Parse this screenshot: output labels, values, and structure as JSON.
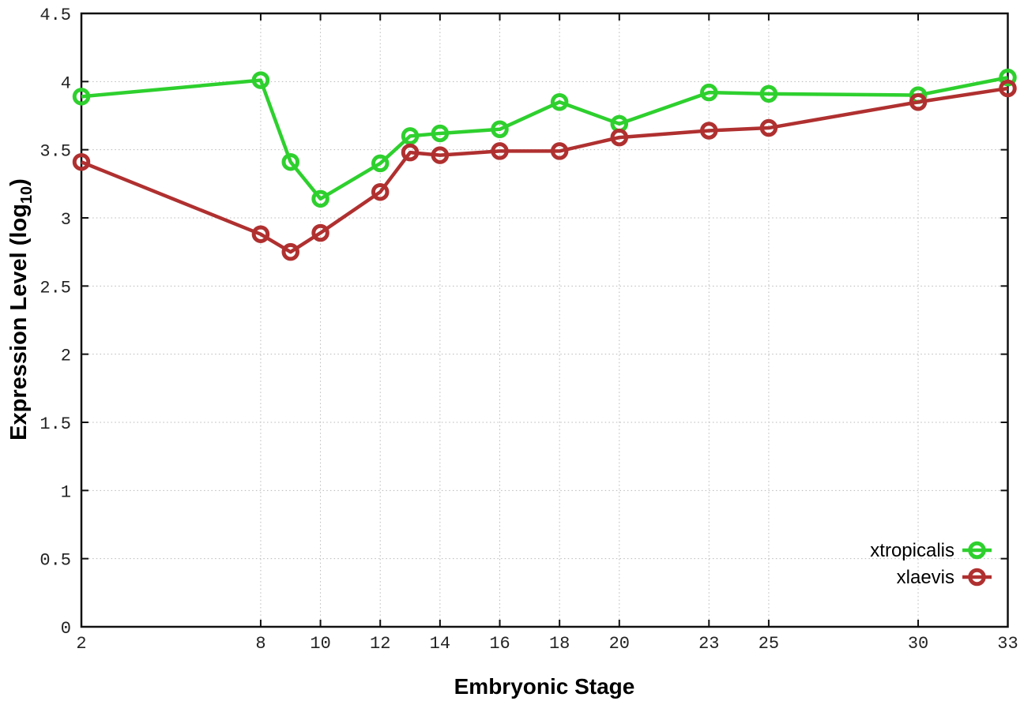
{
  "chart_data": {
    "type": "line",
    "title": "",
    "xlabel": "Embryonic Stage",
    "ylabel": {
      "prefix": "Expression Level (log",
      "sub": "10",
      "suffix": ")"
    },
    "xlim": [
      2,
      33
    ],
    "ylim": [
      0,
      4.5
    ],
    "x_ticks": [
      2,
      8,
      10,
      12,
      14,
      16,
      18,
      20,
      23,
      25,
      30,
      33
    ],
    "y_ticks": [
      0,
      0.5,
      1,
      1.5,
      2,
      2.5,
      3,
      3.5,
      4,
      4.5
    ],
    "grid": true,
    "legend_position": "bottom-right",
    "x": [
      2,
      8,
      9,
      10,
      12,
      13,
      14,
      16,
      18,
      20,
      23,
      25,
      30,
      33
    ],
    "series": [
      {
        "name": "xtropicalis",
        "color": "#2ed02e",
        "values": [
          3.89,
          4.01,
          3.41,
          3.14,
          3.4,
          3.6,
          3.62,
          3.65,
          3.85,
          3.69,
          3.92,
          3.91,
          3.9,
          4.03
        ]
      },
      {
        "name": "xlaevis",
        "color": "#b03030",
        "values": [
          3.41,
          2.88,
          2.75,
          2.89,
          3.19,
          3.48,
          3.46,
          3.49,
          3.49,
          3.59,
          3.64,
          3.66,
          3.85,
          3.95
        ]
      }
    ],
    "colors": {
      "grid": "#b8b8b8",
      "axis": "#111111",
      "tick_label": "#232323",
      "background": "#ffffff"
    }
  }
}
